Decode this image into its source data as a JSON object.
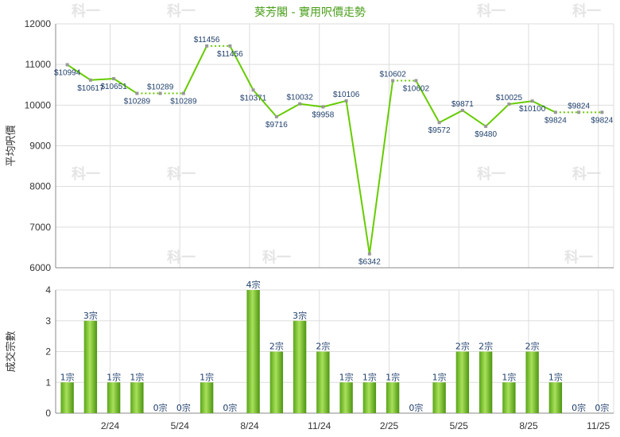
{
  "chart_data": [
    {
      "type": "line",
      "title": "葵芳閣 - 實用呎價走勢",
      "ylabel": "平均呎價",
      "ylim": [
        6000,
        12000
      ],
      "yticks": [
        "6000",
        "7000",
        "8000",
        "9000",
        "10000",
        "11000",
        "12000"
      ],
      "x_ticks": [
        "2/24",
        "5/24",
        "8/24",
        "11/24",
        "2/25",
        "5/25",
        "8/25",
        "11/25"
      ],
      "grid": true,
      "values": [
        10994,
        10617,
        10651,
        10289,
        10289,
        10289,
        11456,
        11456,
        10371,
        9716,
        10032,
        9958,
        10106,
        6342,
        10602,
        10602,
        9572,
        9871,
        9480,
        10025,
        10100,
        9824,
        9824,
        9824
      ],
      "labels": [
        "$10994",
        "$10617",
        "$10651",
        "$10289",
        "$10289",
        "$10289",
        "$11456",
        "$11456",
        "$10371",
        "$9716",
        "$10032",
        "$9958",
        "$10106",
        "$6342",
        "$10602",
        "$10602",
        "$9572",
        "$9871",
        "$9480",
        "$10025",
        "$10100",
        "$9824",
        "$9824",
        "$9824"
      ],
      "label_pos": [
        "below",
        "below",
        "below",
        "below",
        "above",
        "below",
        "above",
        "below",
        "below",
        "below",
        "above",
        "below",
        "above",
        "below",
        "above",
        "below",
        "below",
        "above",
        "below",
        "above",
        "below",
        "below",
        "above",
        "below"
      ],
      "dotted_after": [
        3,
        4,
        6,
        14,
        21,
        22
      ],
      "color": "#66cc00"
    },
    {
      "type": "bar",
      "ylabel": "成交宗數",
      "ylim": [
        0,
        4
      ],
      "yticks": [
        "0",
        "1",
        "2",
        "3",
        "4"
      ],
      "x_ticks": [
        "2/24",
        "5/24",
        "8/24",
        "11/24",
        "2/25",
        "5/25",
        "8/25",
        "11/25"
      ],
      "grid": true,
      "values": [
        1,
        3,
        1,
        1,
        0,
        0,
        1,
        0,
        4,
        2,
        3,
        2,
        1,
        1,
        1,
        0,
        1,
        2,
        2,
        1,
        2,
        1,
        0,
        0
      ],
      "labels": [
        "1宗",
        "3宗",
        "1宗",
        "1宗",
        "0宗",
        "0宗",
        "1宗",
        "0宗",
        "4宗",
        "2宗",
        "3宗",
        "2宗",
        "1宗",
        "1宗",
        "1宗",
        "0宗",
        "1宗",
        "2宗",
        "2宗",
        "1宗",
        "2宗",
        "1宗",
        "0宗",
        "0宗"
      ],
      "color": "#66bb22"
    }
  ],
  "watermark": "科一"
}
